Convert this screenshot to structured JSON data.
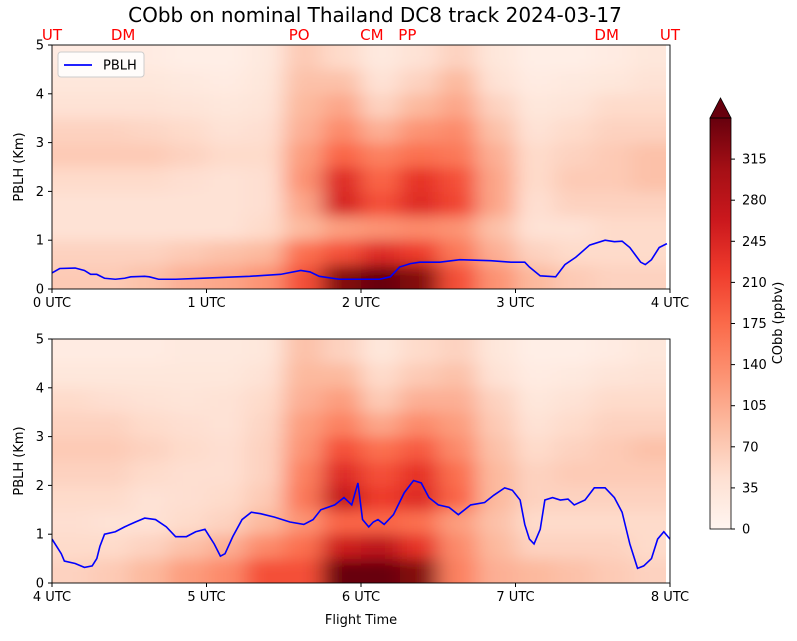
{
  "chart_data": {
    "type": "heatmap",
    "title": "CObb on nominal Thailand DC8 track 2024-03-17",
    "xlabel": "Flight Time",
    "colorbar": {
      "label": "CObb (ppbv)",
      "range": [
        0,
        350
      ],
      "ticks": [
        0,
        35,
        70,
        105,
        140,
        175,
        210,
        245,
        280,
        315
      ],
      "extend": "max",
      "colormap": [
        "#fff5f0",
        "#fee0d2",
        "#fcbba1",
        "#fc9272",
        "#fb6a4a",
        "#ef3b2c",
        "#cb181d",
        "#a50f15",
        "#67000d"
      ]
    },
    "panels": [
      {
        "ylabel": "PBLH (Km)",
        "xlim": [
          0,
          4
        ],
        "ylim": [
          0,
          5
        ],
        "xticks": [
          {
            "v": 0,
            "label": "0 UTC"
          },
          {
            "v": 1,
            "label": "1 UTC"
          },
          {
            "v": 2,
            "label": "2 UTC"
          },
          {
            "v": 3,
            "label": "3 UTC"
          },
          {
            "v": 4,
            "label": "4 UTC"
          }
        ],
        "yticks": [
          0,
          1,
          2,
          3,
          4,
          5
        ],
        "legend": {
          "label": "PBLH",
          "placement": "upper-left",
          "color": "#0000ff"
        },
        "markers": [
          {
            "label": "UT",
            "x": 0.0
          },
          {
            "label": "DM",
            "x": 0.46
          },
          {
            "label": "PO",
            "x": 1.6
          },
          {
            "label": "CM",
            "x": 2.07
          },
          {
            "label": "PP",
            "x": 2.3
          },
          {
            "label": "DM",
            "x": 3.59
          },
          {
            "label": "UT",
            "x": 4.0
          }
        ],
        "heat_rows_km": [
          0.25,
          0.75,
          1.25,
          1.75,
          2.25,
          2.75,
          3.25,
          3.75,
          4.25,
          4.75
        ],
        "heat_cols_hours": [
          0.125,
          0.375,
          0.625,
          0.875,
          1.125,
          1.375,
          1.625,
          1.875,
          2.125,
          2.375,
          2.625,
          2.875,
          3.125,
          3.375,
          3.625,
          3.875
        ],
        "heat": [
          [
            70,
            60,
            40,
            40,
            50,
            70,
            60,
            40,
            30,
            20
          ],
          [
            70,
            60,
            40,
            40,
            50,
            70,
            60,
            40,
            30,
            20
          ],
          [
            80,
            60,
            40,
            40,
            50,
            70,
            55,
            40,
            30,
            20
          ],
          [
            100,
            70,
            40,
            40,
            45,
            60,
            50,
            35,
            25,
            15
          ],
          [
            110,
            80,
            40,
            40,
            40,
            50,
            40,
            30,
            20,
            15
          ],
          [
            130,
            90,
            50,
            45,
            45,
            50,
            45,
            35,
            30,
            25
          ],
          [
            200,
            170,
            90,
            110,
            130,
            120,
            100,
            90,
            80,
            70
          ],
          [
            330,
            200,
            120,
            250,
            240,
            180,
            140,
            110,
            80,
            50
          ],
          [
            360,
            240,
            130,
            200,
            180,
            150,
            100,
            60,
            40,
            25
          ],
          [
            330,
            220,
            140,
            240,
            230,
            170,
            130,
            90,
            60,
            40
          ],
          [
            200,
            160,
            130,
            210,
            200,
            160,
            140,
            110,
            90,
            60
          ],
          [
            130,
            100,
            80,
            110,
            110,
            100,
            80,
            60,
            40,
            30
          ],
          [
            90,
            60,
            40,
            45,
            50,
            50,
            40,
            30,
            20,
            15
          ],
          [
            70,
            50,
            40,
            60,
            70,
            60,
            50,
            35,
            25,
            15
          ],
          [
            60,
            50,
            50,
            60,
            70,
            70,
            60,
            50,
            30,
            20
          ],
          [
            60,
            50,
            50,
            60,
            80,
            80,
            60,
            50,
            40,
            30
          ]
        ],
        "pblh": {
          "x": [
            0,
            0.05,
            0.15,
            0.21,
            0.25,
            0.29,
            0.34,
            0.41,
            0.47,
            0.51,
            0.6,
            0.63,
            0.69,
            0.8,
            0.96,
            1.28,
            1.48,
            1.61,
            1.67,
            1.73,
            1.86,
            2.12,
            2.19,
            2.25,
            2.32,
            2.38,
            2.51,
            2.64,
            2.84,
            2.97,
            3.06,
            3.09,
            3.16,
            3.26,
            3.32,
            3.39,
            3.48,
            3.58,
            3.64,
            3.69,
            3.74,
            3.81,
            3.84,
            3.88,
            3.93,
            3.98
          ],
          "y": [
            0.33,
            0.42,
            0.43,
            0.38,
            0.3,
            0.3,
            0.22,
            0.2,
            0.22,
            0.25,
            0.26,
            0.25,
            0.2,
            0.2,
            0.22,
            0.26,
            0.3,
            0.38,
            0.35,
            0.26,
            0.2,
            0.2,
            0.25,
            0.45,
            0.52,
            0.55,
            0.55,
            0.6,
            0.58,
            0.55,
            0.55,
            0.45,
            0.27,
            0.25,
            0.5,
            0.65,
            0.9,
            1.0,
            0.97,
            0.98,
            0.85,
            0.55,
            0.5,
            0.6,
            0.85,
            0.93
          ]
        }
      },
      {
        "ylabel": "PBLH (Km)",
        "xlim": [
          4,
          8
        ],
        "ylim": [
          0,
          5
        ],
        "xticks": [
          {
            "v": 4,
            "label": "4 UTC"
          },
          {
            "v": 5,
            "label": "5 UTC"
          },
          {
            "v": 6,
            "label": "6 UTC"
          },
          {
            "v": 7,
            "label": "7 UTC"
          },
          {
            "v": 8,
            "label": "8 UTC"
          }
        ],
        "yticks": [
          0,
          1,
          2,
          3,
          4,
          5
        ],
        "heat_rows_km": [
          0.25,
          0.75,
          1.25,
          1.75,
          2.25,
          2.75,
          3.25,
          3.75,
          4.25,
          4.75
        ],
        "heat_cols_hours": [
          4.125,
          4.375,
          4.625,
          4.875,
          5.125,
          5.375,
          5.625,
          5.875,
          6.125,
          6.375,
          6.625,
          6.875,
          7.125,
          7.375,
          7.625,
          7.875
        ],
        "heat": [
          [
            60,
            50,
            45,
            50,
            60,
            70,
            60,
            50,
            30,
            20
          ],
          [
            70,
            50,
            40,
            50,
            60,
            70,
            60,
            45,
            30,
            20
          ],
          [
            90,
            60,
            40,
            40,
            50,
            60,
            50,
            40,
            30,
            20
          ],
          [
            120,
            80,
            50,
            45,
            45,
            50,
            45,
            35,
            30,
            25
          ],
          [
            140,
            100,
            60,
            50,
            45,
            45,
            40,
            40,
            30,
            25
          ],
          [
            200,
            140,
            90,
            70,
            60,
            60,
            55,
            50,
            40,
            30
          ],
          [
            200,
            170,
            130,
            160,
            150,
            130,
            120,
            100,
            90,
            80
          ],
          [
            360,
            260,
            180,
            270,
            240,
            200,
            150,
            120,
            90,
            60
          ],
          [
            360,
            280,
            180,
            220,
            200,
            170,
            110,
            70,
            50,
            30
          ],
          [
            330,
            230,
            170,
            240,
            230,
            190,
            140,
            100,
            70,
            50
          ],
          [
            150,
            140,
            120,
            180,
            170,
            140,
            120,
            100,
            80,
            60
          ],
          [
            100,
            90,
            80,
            90,
            90,
            80,
            70,
            60,
            40,
            30
          ],
          [
            90,
            60,
            50,
            60,
            60,
            50,
            40,
            30,
            20,
            15
          ],
          [
            80,
            60,
            50,
            60,
            70,
            60,
            50,
            40,
            25,
            15
          ],
          [
            70,
            60,
            50,
            60,
            70,
            70,
            60,
            50,
            35,
            20
          ],
          [
            60,
            50,
            50,
            60,
            70,
            80,
            60,
            50,
            40,
            30
          ]
        ],
        "pblh": {
          "x": [
            4,
            4.04,
            4.06,
            4.08,
            4.15,
            4.21,
            4.26,
            4.29,
            4.31,
            4.34,
            4.41,
            4.47,
            4.54,
            4.6,
            4.6,
            4.67,
            4.74,
            4.8,
            4.87,
            4.93,
            4.99,
            5.02,
            5.05,
            5.09,
            5.12,
            5.17,
            5.23,
            5.29,
            5.35,
            5.44,
            5.54,
            5.63,
            5.69,
            5.74,
            5.83,
            5.89,
            5.94,
            5.98,
            6.01,
            6.05,
            6.08,
            6.11,
            6.15,
            6.21,
            6.28,
            6.34,
            6.39,
            6.44,
            6.5,
            6.57,
            6.63,
            6.71,
            6.8,
            6.86,
            6.93,
            6.98,
            7.03,
            7.06,
            7.09,
            7.12,
            7.16,
            7.19,
            7.24,
            7.29,
            7.34,
            7.38,
            7.45,
            7.51,
            7.58,
            7.64,
            7.69,
            7.74,
            7.79,
            7.79,
            7.83,
            7.88,
            7.92,
            7.96,
            8.0
          ],
          "y": [
            0.9,
            0.7,
            0.6,
            0.45,
            0.4,
            0.32,
            0.35,
            0.5,
            0.75,
            1.0,
            1.05,
            1.15,
            1.25,
            1.33,
            1.33,
            1.3,
            1.15,
            0.95,
            0.95,
            1.05,
            1.1,
            0.95,
            0.8,
            0.55,
            0.6,
            0.95,
            1.3,
            1.45,
            1.42,
            1.35,
            1.25,
            1.2,
            1.3,
            1.5,
            1.6,
            1.75,
            1.6,
            2.05,
            1.3,
            1.15,
            1.25,
            1.3,
            1.2,
            1.4,
            1.85,
            2.1,
            2.05,
            1.75,
            1.6,
            1.55,
            1.4,
            1.6,
            1.65,
            1.8,
            1.95,
            1.9,
            1.7,
            1.2,
            0.9,
            0.8,
            1.1,
            1.7,
            1.75,
            1.7,
            1.72,
            1.6,
            1.7,
            1.95,
            1.95,
            1.75,
            1.45,
            0.8,
            0.3,
            0.3,
            0.35,
            0.5,
            0.9,
            1.05,
            0.9
          ]
        }
      }
    ]
  }
}
